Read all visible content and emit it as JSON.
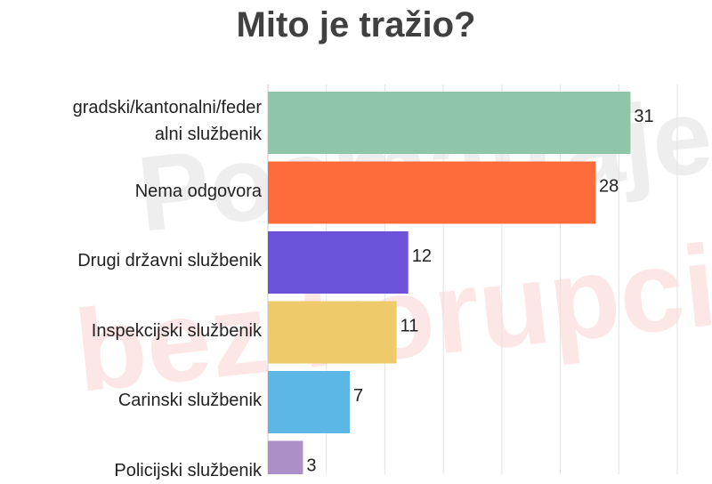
{
  "chart_data": {
    "type": "bar",
    "orientation": "horizontal",
    "title": "Mito je tražio?",
    "categories": [
      "gradski/kantonalni/federalni službenik",
      "Nema odgovora",
      "Drugi državni službenik",
      "Inspekcijski službenik",
      "Carinski službenik",
      "Policijski službenik"
    ],
    "label_lines": [
      [
        "gradski/kantonalni/feder",
        "alni službenik"
      ],
      [
        "Nema odgovora"
      ],
      [
        "Drugi državni službenik"
      ],
      [
        "Inspekcijski službenik"
      ],
      [
        "Carinski službenik"
      ],
      [
        "Policijski službenik"
      ]
    ],
    "values": [
      31,
      28,
      12,
      11,
      7,
      3
    ],
    "colors": [
      "#8fc5a8",
      "#fd6b3a",
      "#6c52d9",
      "#eeca6a",
      "#5db7e4",
      "#ac8fc9"
    ],
    "xlim": [
      0,
      35
    ],
    "grid": true,
    "xlabel": "",
    "ylabel": ""
  },
  "watermark": {
    "line1": "Posmatraje",
    "line2": "bez korupcije!"
  }
}
